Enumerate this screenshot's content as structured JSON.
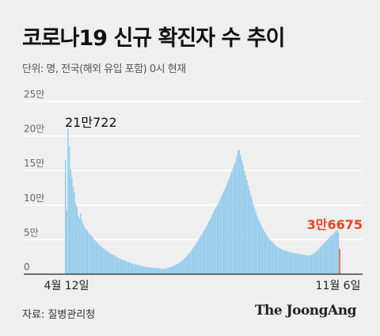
{
  "header": {
    "title": "코로나19 신규 확진자 수 추이",
    "unit_note": "단위: 명, 전국(해외 유입 포함) 0시 현재"
  },
  "footer": {
    "source": "자료: 질병관리청",
    "logo_text": "The JoongAng"
  },
  "colors": {
    "bar": "#8fcaeb",
    "highlight": "#e8441f",
    "background": "#efefef",
    "grid": "#ffffff"
  },
  "chart_data": {
    "type": "bar",
    "ylim": [
      0,
      250000
    ],
    "yticks": [
      {
        "value": 0,
        "label": "0"
      },
      {
        "value": 50000,
        "label": "5만"
      },
      {
        "value": 100000,
        "label": "10만"
      },
      {
        "value": 150000,
        "label": "15만"
      },
      {
        "value": 200000,
        "label": "20만"
      },
      {
        "value": 250000,
        "label": "25만"
      }
    ],
    "x_start_label": "4월 12일",
    "x_end_label": "11월 6일",
    "grid": true,
    "annotations": [
      {
        "label": "21만722",
        "value": 210722
      },
      {
        "label": "3만6675",
        "value": 36675,
        "highlight": true
      }
    ],
    "values": [
      165000,
      92000,
      210722,
      185000,
      152000,
      140000,
      127000,
      118000,
      102000,
      98000,
      85000,
      81000,
      88000,
      77000,
      72000,
      68000,
      65000,
      63000,
      60000,
      58000,
      56000,
      54000,
      51000,
      49000,
      47000,
      45000,
      43000,
      41000,
      40000,
      38000,
      37000,
      35000,
      34000,
      33000,
      31000,
      30000,
      29000,
      28000,
      27000,
      26000,
      25000,
      24000,
      23000,
      22000,
      21000,
      20000,
      20000,
      19000,
      18000,
      17000,
      17000,
      16000,
      15000,
      15000,
      14000,
      14000,
      13000,
      13000,
      12000,
      12000,
      11500,
      11000,
      11000,
      10500,
      10000,
      10000,
      9800,
      9500,
      9200,
      9000,
      8800,
      8600,
      8500,
      8300,
      8200,
      8000,
      8000,
      8200,
      8500,
      9000,
      9500,
      10000,
      10500,
      11000,
      12000,
      13000,
      14000,
      15000,
      16000,
      17500,
      19000,
      20500,
      22000,
      24000,
      26000,
      28000,
      30000,
      32500,
      35000,
      37500,
      40000,
      43000,
      46000,
      49000,
      52000,
      55000,
      58000,
      61000,
      64000,
      68000,
      71000,
      75000,
      78000,
      82000,
      86000,
      90000,
      94000,
      97000,
      100000,
      104000,
      108000,
      112000,
      116000,
      120000,
      124000,
      128000,
      133000,
      138000,
      143000,
      148000,
      153000,
      158000,
      163000,
      170000,
      178000,
      180000,
      172000,
      165000,
      158000,
      150000,
      143000,
      136000,
      129000,
      122000,
      115000,
      108000,
      101000,
      95000,
      89000,
      84000,
      79000,
      75000,
      71000,
      67000,
      64000,
      61000,
      58000,
      55000,
      52000,
      50000,
      48000,
      46000,
      44000,
      42000,
      40000,
      39000,
      38000,
      37000,
      36000,
      35000,
      34500,
      34000,
      33500,
      33000,
      32500,
      32000,
      31500,
      31000,
      30500,
      30000,
      30000,
      29500,
      29000,
      29000,
      28500,
      28000,
      28000,
      27500,
      27000,
      27000,
      27500,
      28000,
      29000,
      30000,
      31500,
      33000,
      35000,
      37000,
      39000,
      41000,
      43000,
      45000,
      47000,
      49000,
      51000,
      53000,
      55000,
      56000,
      58000,
      60000,
      62000,
      64000,
      60000,
      36675
    ]
  }
}
